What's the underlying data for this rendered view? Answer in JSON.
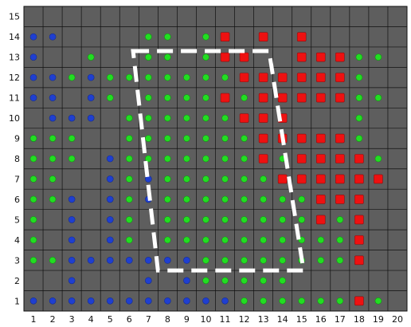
{
  "chart_data": {
    "type": "scatter",
    "title": "",
    "xlabel": "",
    "ylabel": "",
    "xlim": [
      1,
      20
    ],
    "ylim": [
      1,
      15
    ],
    "x_ticks": [
      "1",
      "2",
      "3",
      "4",
      "5",
      "6",
      "7",
      "8",
      "9",
      "10",
      "11",
      "12",
      "13",
      "14",
      "15",
      "16",
      "17",
      "18",
      "19",
      "20"
    ],
    "y_ticks": [
      "1",
      "2",
      "3",
      "4",
      "5",
      "6",
      "7",
      "8",
      "9",
      "10",
      "11",
      "12",
      "13",
      "14",
      "15"
    ],
    "grid": true,
    "legend": "none",
    "colors": {
      "background": "#5e5e5e",
      "grid": "#111111",
      "blue": "#1f3fd0",
      "green": "#22dd22",
      "red": "#ee1111",
      "region_outline": "#ffffff"
    },
    "series": [
      {
        "color": "blue",
        "marker": "dot",
        "points": [
          [
            1,
            14
          ],
          [
            2,
            14
          ],
          [
            1,
            13
          ],
          [
            1,
            12
          ],
          [
            2,
            12
          ],
          [
            4,
            12
          ],
          [
            1,
            11
          ],
          [
            2,
            11
          ],
          [
            4,
            11
          ],
          [
            2,
            10
          ],
          [
            3,
            10
          ],
          [
            4,
            10
          ],
          [
            1,
            9
          ],
          [
            5,
            8
          ],
          [
            5,
            7
          ],
          [
            7,
            7
          ],
          [
            3,
            6
          ],
          [
            5,
            6
          ],
          [
            7,
            6
          ],
          [
            3,
            5
          ],
          [
            5,
            5
          ],
          [
            3,
            4
          ],
          [
            5,
            4
          ],
          [
            3,
            3
          ],
          [
            4,
            3
          ],
          [
            5,
            3
          ],
          [
            6,
            3
          ],
          [
            7,
            3
          ],
          [
            8,
            3
          ],
          [
            9,
            3
          ],
          [
            3,
            2
          ],
          [
            7,
            2
          ],
          [
            9,
            2
          ],
          [
            1,
            1
          ],
          [
            2,
            1
          ],
          [
            3,
            1
          ],
          [
            4,
            1
          ],
          [
            5,
            1
          ],
          [
            6,
            1
          ],
          [
            7,
            1
          ],
          [
            8,
            1
          ],
          [
            9,
            1
          ],
          [
            10,
            1
          ],
          [
            11,
            1
          ]
        ]
      },
      {
        "color": "green",
        "marker": "dot",
        "points": [
          [
            7,
            14
          ],
          [
            8,
            14
          ],
          [
            10,
            14
          ],
          [
            4,
            13
          ],
          [
            7,
            13
          ],
          [
            8,
            13
          ],
          [
            10,
            13
          ],
          [
            18,
            13
          ],
          [
            19,
            13
          ],
          [
            3,
            12
          ],
          [
            5,
            12
          ],
          [
            6,
            12
          ],
          [
            7,
            12
          ],
          [
            8,
            12
          ],
          [
            9,
            12
          ],
          [
            10,
            12
          ],
          [
            11,
            12
          ],
          [
            18,
            12
          ],
          [
            5,
            11
          ],
          [
            7,
            11
          ],
          [
            8,
            11
          ],
          [
            9,
            11
          ],
          [
            10,
            11
          ],
          [
            12,
            11
          ],
          [
            18,
            11
          ],
          [
            19,
            11
          ],
          [
            6,
            10
          ],
          [
            7,
            10
          ],
          [
            8,
            10
          ],
          [
            9,
            10
          ],
          [
            10,
            10
          ],
          [
            11,
            10
          ],
          [
            18,
            10
          ],
          [
            1,
            9
          ],
          [
            2,
            9
          ],
          [
            3,
            9
          ],
          [
            6,
            9
          ],
          [
            7,
            9
          ],
          [
            8,
            9
          ],
          [
            9,
            9
          ],
          [
            10,
            9
          ],
          [
            11,
            9
          ],
          [
            12,
            9
          ],
          [
            18,
            9
          ],
          [
            1,
            8
          ],
          [
            2,
            8
          ],
          [
            3,
            8
          ],
          [
            6,
            8
          ],
          [
            7,
            8
          ],
          [
            8,
            8
          ],
          [
            9,
            8
          ],
          [
            10,
            8
          ],
          [
            11,
            8
          ],
          [
            12,
            8
          ],
          [
            14,
            8
          ],
          [
            15,
            8
          ],
          [
            19,
            8
          ],
          [
            1,
            7
          ],
          [
            2,
            7
          ],
          [
            6,
            7
          ],
          [
            8,
            7
          ],
          [
            9,
            7
          ],
          [
            10,
            7
          ],
          [
            11,
            7
          ],
          [
            12,
            7
          ],
          [
            13,
            7
          ],
          [
            14,
            7
          ],
          [
            15,
            7
          ],
          [
            1,
            6
          ],
          [
            2,
            6
          ],
          [
            6,
            6
          ],
          [
            8,
            6
          ],
          [
            9,
            6
          ],
          [
            10,
            6
          ],
          [
            11,
            6
          ],
          [
            12,
            6
          ],
          [
            13,
            6
          ],
          [
            14,
            6
          ],
          [
            15,
            6
          ],
          [
            16,
            6
          ],
          [
            1,
            5
          ],
          [
            6,
            5
          ],
          [
            8,
            5
          ],
          [
            9,
            5
          ],
          [
            10,
            5
          ],
          [
            11,
            5
          ],
          [
            12,
            5
          ],
          [
            13,
            5
          ],
          [
            14,
            5
          ],
          [
            15,
            5
          ],
          [
            16,
            5
          ],
          [
            17,
            5
          ],
          [
            1,
            4
          ],
          [
            6,
            4
          ],
          [
            8,
            4
          ],
          [
            9,
            4
          ],
          [
            10,
            4
          ],
          [
            11,
            4
          ],
          [
            12,
            4
          ],
          [
            13,
            4
          ],
          [
            14,
            4
          ],
          [
            15,
            4
          ],
          [
            16,
            4
          ],
          [
            17,
            4
          ],
          [
            1,
            3
          ],
          [
            2,
            3
          ],
          [
            10,
            3
          ],
          [
            11,
            3
          ],
          [
            12,
            3
          ],
          [
            13,
            3
          ],
          [
            14,
            3
          ],
          [
            15,
            3
          ],
          [
            16,
            3
          ],
          [
            17,
            3
          ],
          [
            10,
            2
          ],
          [
            11,
            2
          ],
          [
            12,
            2
          ],
          [
            13,
            2
          ],
          [
            14,
            2
          ],
          [
            12,
            1
          ],
          [
            13,
            1
          ],
          [
            14,
            1
          ],
          [
            15,
            1
          ],
          [
            16,
            1
          ],
          [
            17,
            1
          ],
          [
            19,
            1
          ]
        ]
      },
      {
        "color": "red",
        "marker": "square",
        "points": [
          [
            11,
            14
          ],
          [
            13,
            14
          ],
          [
            15,
            14
          ],
          [
            11,
            13
          ],
          [
            12,
            13
          ],
          [
            15,
            13
          ],
          [
            16,
            13
          ],
          [
            17,
            13
          ],
          [
            12,
            12
          ],
          [
            13,
            12
          ],
          [
            14,
            12
          ],
          [
            15,
            12
          ],
          [
            16,
            12
          ],
          [
            17,
            12
          ],
          [
            11,
            11
          ],
          [
            13,
            11
          ],
          [
            14,
            11
          ],
          [
            15,
            11
          ],
          [
            16,
            11
          ],
          [
            17,
            11
          ],
          [
            12,
            10
          ],
          [
            13,
            10
          ],
          [
            14,
            10
          ],
          [
            13,
            9
          ],
          [
            14,
            9
          ],
          [
            15,
            9
          ],
          [
            16,
            9
          ],
          [
            17,
            9
          ],
          [
            13,
            8
          ],
          [
            15,
            8
          ],
          [
            16,
            8
          ],
          [
            17,
            8
          ],
          [
            18,
            8
          ],
          [
            14,
            7
          ],
          [
            15,
            7
          ],
          [
            16,
            7
          ],
          [
            17,
            7
          ],
          [
            18,
            7
          ],
          [
            19,
            7
          ],
          [
            16,
            6
          ],
          [
            17,
            6
          ],
          [
            18,
            6
          ],
          [
            16,
            5
          ],
          [
            18,
            5
          ],
          [
            18,
            4
          ],
          [
            18,
            3
          ],
          [
            18,
            1
          ]
        ]
      }
    ],
    "annotations": [
      {
        "type": "dashed_polygon",
        "color": "white",
        "points": [
          [
            6.2,
            13.3
          ],
          [
            13.3,
            13.3
          ],
          [
            15.1,
            2.5
          ],
          [
            7.5,
            2.5
          ]
        ]
      }
    ]
  }
}
